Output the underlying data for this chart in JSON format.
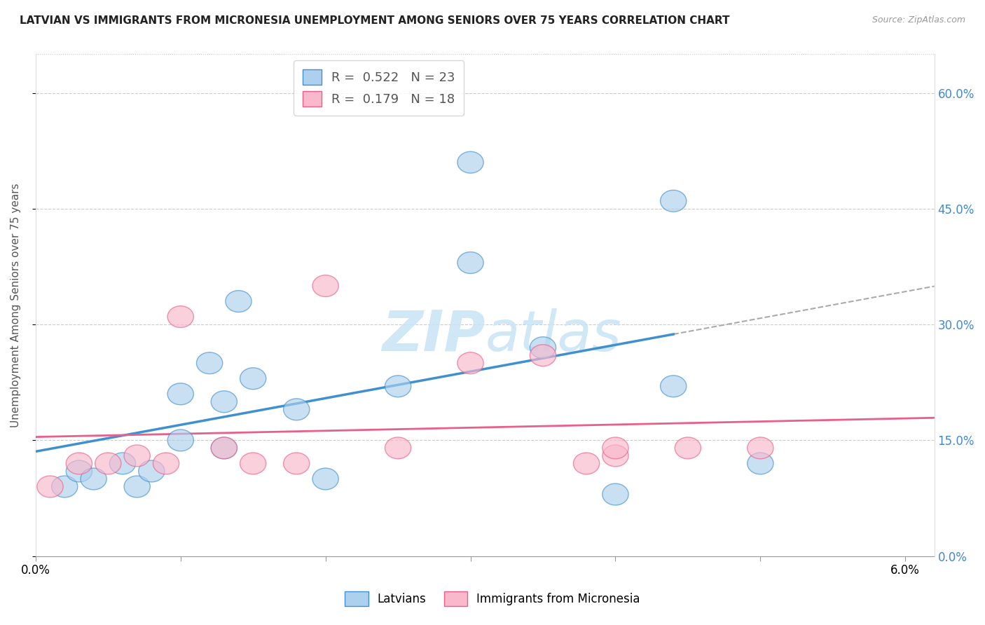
{
  "title": "LATVIAN VS IMMIGRANTS FROM MICRONESIA UNEMPLOYMENT AMONG SENIORS OVER 75 YEARS CORRELATION CHART",
  "source": "Source: ZipAtlas.com",
  "ylabel": "Unemployment Among Seniors over 75 years",
  "legend_latvian": "Latvians",
  "legend_micronesia": "Immigrants from Micronesia",
  "R_latvian": 0.522,
  "N_latvian": 23,
  "R_micronesia": 0.179,
  "N_micronesia": 18,
  "color_latvian": "#acd0ed",
  "color_micronesia": "#f9b8cb",
  "color_line_latvian": "#4090d0",
  "color_line_micronesia": "#e8608a",
  "watermark_color": "#c8e4f5",
  "latvian_x": [
    0.0002,
    0.0003,
    0.0004,
    0.0006,
    0.0007,
    0.0008,
    0.001,
    0.001,
    0.0012,
    0.0013,
    0.0013,
    0.0014,
    0.0015,
    0.0018,
    0.002,
    0.0025,
    0.003,
    0.003,
    0.0035,
    0.004,
    0.0044,
    0.0044,
    0.005
  ],
  "latvian_y": [
    0.09,
    0.11,
    0.1,
    0.12,
    0.09,
    0.11,
    0.15,
    0.21,
    0.25,
    0.14,
    0.2,
    0.33,
    0.23,
    0.19,
    0.1,
    0.22,
    0.51,
    0.38,
    0.27,
    0.08,
    0.22,
    0.46,
    0.12
  ],
  "micronesia_x": [
    0.0001,
    0.0003,
    0.0005,
    0.0007,
    0.0009,
    0.001,
    0.0013,
    0.0015,
    0.0018,
    0.002,
    0.0025,
    0.003,
    0.0035,
    0.0038,
    0.004,
    0.004,
    0.0045,
    0.005
  ],
  "micronesia_y": [
    0.09,
    0.12,
    0.12,
    0.13,
    0.12,
    0.31,
    0.14,
    0.12,
    0.12,
    0.35,
    0.14,
    0.25,
    0.26,
    0.12,
    0.13,
    0.14,
    0.14,
    0.14
  ],
  "xlim": [
    0.0,
    0.0062
  ],
  "ylim": [
    0.0,
    0.65
  ],
  "right_yticks": [
    0.0,
    0.15,
    0.3,
    0.45,
    0.6
  ],
  "right_ytick_labels": [
    "0.0%",
    "15.0%",
    "30.0%",
    "45.0%",
    "60.0%"
  ],
  "left_yticks": [
    0.0,
    0.15,
    0.3,
    0.45,
    0.6
  ],
  "xticks": [
    0.0,
    0.001,
    0.002,
    0.003,
    0.004,
    0.005,
    0.006
  ],
  "xtick_labels_show": {
    "0.0": "0.0%",
    "0.006": "6.0%"
  },
  "grid_yticks": [
    0.15,
    0.3,
    0.45,
    0.6
  ],
  "line_latvian_x_start": 0.0,
  "line_latvian_x_solid_end": 0.0044,
  "line_latvian_x_dash_end": 0.0062,
  "line_micronesia_x_start": 0.0,
  "line_micronesia_x_end": 0.0062
}
